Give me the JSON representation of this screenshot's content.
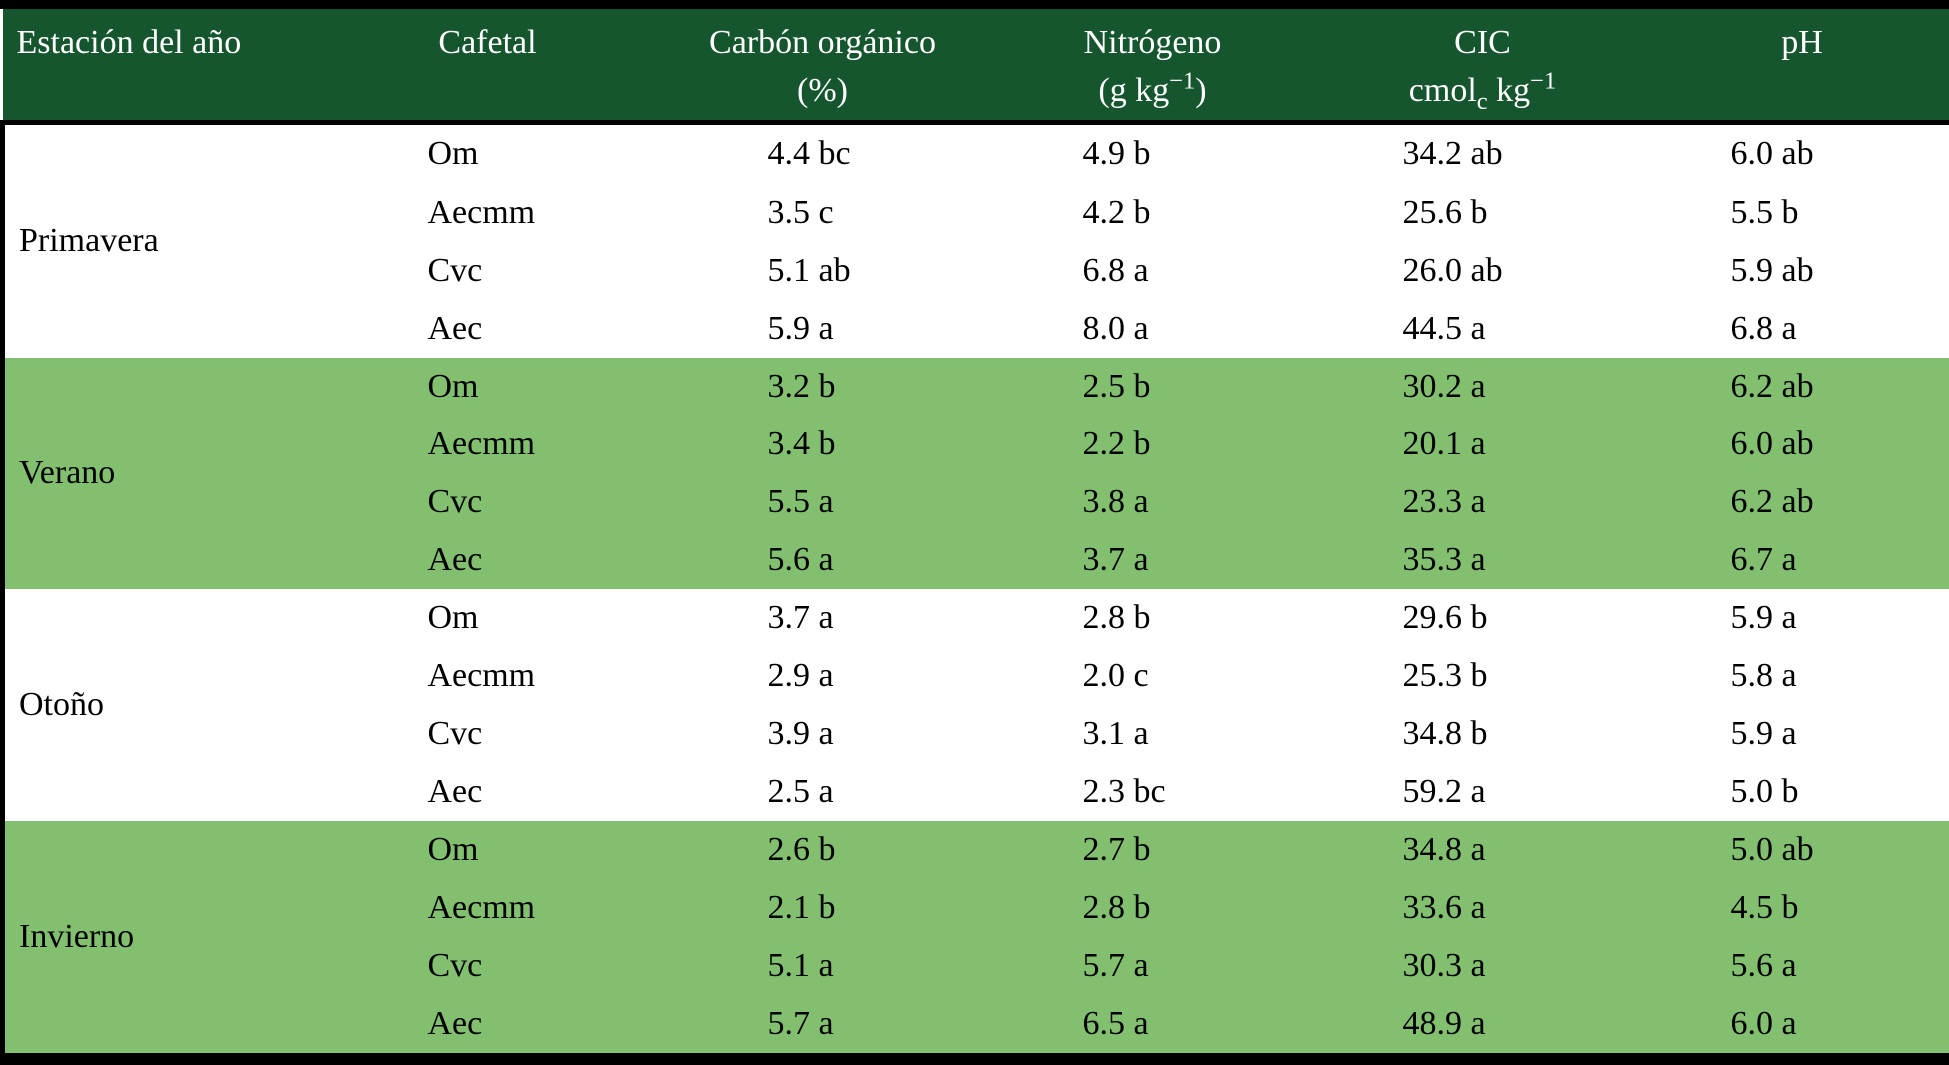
{
  "colors": {
    "header_bg": "#15562E",
    "header_text": "#FFFFFF",
    "band_bg": "#82C06F",
    "row_bg": "#FFFFFF",
    "body_text": "#000000",
    "border": "#000000"
  },
  "chart_data": {
    "type": "table",
    "columns": [
      {
        "label": "Estación del año"
      },
      {
        "label": "Cafetal"
      },
      {
        "label": "Carbón orgánico",
        "unit_parts": [
          {
            "t": "(%)"
          }
        ]
      },
      {
        "label": "Nitrógeno",
        "unit_parts": [
          {
            "t": "(g kg"
          },
          {
            "t": "−1",
            "style": "sup"
          },
          {
            "t": ")"
          }
        ]
      },
      {
        "label": "CIC",
        "unit_parts": [
          {
            "t": "cmol"
          },
          {
            "t": "c",
            "style": "sub"
          },
          {
            "t": " kg"
          },
          {
            "t": "−1",
            "style": "sup"
          }
        ]
      },
      {
        "label": "pH"
      }
    ],
    "groups": [
      {
        "season": "Primavera",
        "shaded": false,
        "rows": [
          {
            "cafetal": "Om",
            "carbono": "4.4 bc",
            "nitrogeno": "4.9 b",
            "cic": "34.2 ab",
            "ph": "6.0 ab"
          },
          {
            "cafetal": "Aecmm",
            "carbono": "3.5 c",
            "nitrogeno": "4.2 b",
            "cic": "25.6 b",
            "ph": "5.5 b"
          },
          {
            "cafetal": "Cvc",
            "carbono": "5.1 ab",
            "nitrogeno": "6.8 a",
            "cic": "26.0 ab",
            "ph": "5.9 ab"
          },
          {
            "cafetal": "Aec",
            "carbono": "5.9 a",
            "nitrogeno": "8.0 a",
            "cic": "44.5 a",
            "ph": "6.8 a"
          }
        ]
      },
      {
        "season": "Verano",
        "shaded": true,
        "rows": [
          {
            "cafetal": "Om",
            "carbono": "3.2 b",
            "nitrogeno": "2.5 b",
            "cic": "30.2 a",
            "ph": "6.2 ab"
          },
          {
            "cafetal": "Aecmm",
            "carbono": "3.4 b",
            "nitrogeno": "2.2 b",
            "cic": "20.1 a",
            "ph": "6.0 ab"
          },
          {
            "cafetal": "Cvc",
            "carbono": "5.5 a",
            "nitrogeno": "3.8 a",
            "cic": "23.3 a",
            "ph": "6.2 ab"
          },
          {
            "cafetal": "Aec",
            "carbono": "5.6 a",
            "nitrogeno": "3.7 a",
            "cic": "35.3 a",
            "ph": "6.7 a"
          }
        ]
      },
      {
        "season": "Otoño",
        "shaded": false,
        "rows": [
          {
            "cafetal": "Om",
            "carbono": "3.7 a",
            "nitrogeno": "2.8 b",
            "cic": "29.6 b",
            "ph": "5.9 a"
          },
          {
            "cafetal": "Aecmm",
            "carbono": "2.9 a",
            "nitrogeno": "2.0 c",
            "cic": "25.3 b",
            "ph": "5.8 a"
          },
          {
            "cafetal": "Cvc",
            "carbono": "3.9 a",
            "nitrogeno": "3.1 a",
            "cic": "34.8 b",
            "ph": "5.9 a"
          },
          {
            "cafetal": "Aec",
            "carbono": "2.5 a",
            "nitrogeno": "2.3 bc",
            "cic": "59.2 a",
            "ph": "5.0 b"
          }
        ]
      },
      {
        "season": "Invierno",
        "shaded": true,
        "rows": [
          {
            "cafetal": "Om",
            "carbono": "2.6 b",
            "nitrogeno": "2.7 b",
            "cic": "34.8 a",
            "ph": "5.0 ab"
          },
          {
            "cafetal": "Aecmm",
            "carbono": "2.1 b",
            "nitrogeno": "2.8 b",
            "cic": "33.6 a",
            "ph": "4.5 b"
          },
          {
            "cafetal": "Cvc",
            "carbono": "5.1 a",
            "nitrogeno": "5.7 a",
            "cic": "30.3 a",
            "ph": "5.6 a"
          },
          {
            "cafetal": "Aec",
            "carbono": "5.7 a",
            "nitrogeno": "6.5 a",
            "cic": "48.9 a",
            "ph": "6.0 a"
          }
        ]
      }
    ]
  }
}
